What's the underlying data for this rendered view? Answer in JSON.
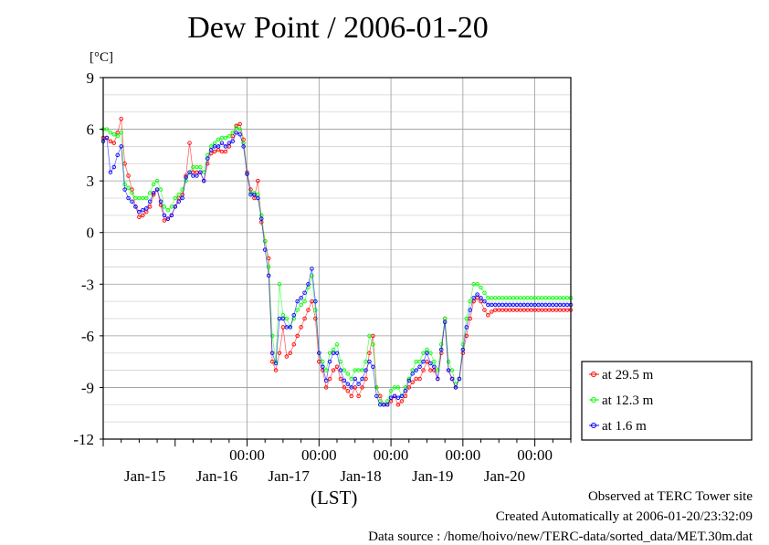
{
  "title": "Dew Point / 2006-01-20",
  "unit_label": "[°C]",
  "xlabel": "(LST)",
  "footer": {
    "site": "Observed at TERC Tower site",
    "created": "Created Automatically at 2006-01-20/23:32:09",
    "source": "Data source : /home/hoivo/new/TERC-data/sorted_data/MET.30m.dat"
  },
  "colors": {
    "at_29_5": "#ff0000",
    "at_12_3": "#00ff00",
    "at_1_6": "#0000ff"
  },
  "chart_data": {
    "type": "line",
    "title": "Dew Point / 2006-01-20",
    "ylabel": "[°C]",
    "xlabel": "(LST)",
    "ylim": [
      -12,
      9
    ],
    "yticks": [
      9,
      6,
      3,
      0,
      -3,
      -6,
      -9,
      -12
    ],
    "ytick_labels": [
      "9",
      "6",
      "3",
      "0",
      "-3",
      "-6",
      "-9",
      "-12"
    ],
    "xlim": [
      14.0,
      20.5
    ],
    "x_unit": "days (January 2006, local standard time)",
    "xticks_midnight": [
      16,
      17,
      18,
      19,
      20
    ],
    "xtick_labels_time": [
      "00:00",
      "00:00",
      "00:00",
      "00:00",
      "00:00"
    ],
    "xtick_labels_date": [
      {
        "x": 14.58,
        "label": "Jan-15"
      },
      {
        "x": 15.58,
        "label": "Jan-16"
      },
      {
        "x": 16.58,
        "label": "Jan-17"
      },
      {
        "x": 17.58,
        "label": "Jan-18"
      },
      {
        "x": 18.58,
        "label": "Jan-19"
      },
      {
        "x": 19.58,
        "label": "Jan-20"
      }
    ],
    "grid": true,
    "legend_position": "right",
    "series": [
      {
        "name": "at 29.5 m",
        "color": "#ff0000",
        "x": [
          14.0,
          14.05,
          14.1,
          14.15,
          14.2,
          14.25,
          14.3,
          14.35,
          14.4,
          14.45,
          14.5,
          14.55,
          14.6,
          14.65,
          14.7,
          14.75,
          14.8,
          14.85,
          14.9,
          14.95,
          15.0,
          15.05,
          15.1,
          15.15,
          15.2,
          15.25,
          15.3,
          15.35,
          15.4,
          15.45,
          15.5,
          15.55,
          15.6,
          15.65,
          15.7,
          15.75,
          15.8,
          15.85,
          15.9,
          15.95,
          16.0,
          16.05,
          16.1,
          16.15,
          16.2,
          16.25,
          16.3,
          16.35,
          16.4,
          16.45,
          16.5,
          16.55,
          16.6,
          16.65,
          16.7,
          16.75,
          16.8,
          16.85,
          16.9,
          16.95,
          17.0,
          17.05,
          17.1,
          17.15,
          17.2,
          17.25,
          17.3,
          17.35,
          17.4,
          17.45,
          17.5,
          17.55,
          17.6,
          17.65,
          17.7,
          17.75,
          17.8,
          17.85,
          17.9,
          17.95,
          18.0,
          18.05,
          18.1,
          18.15,
          18.2,
          18.25,
          18.3,
          18.35,
          18.4,
          18.45,
          18.5,
          18.55,
          18.6,
          18.65,
          18.7,
          18.75,
          18.8,
          18.85,
          18.9,
          18.95,
          19.0,
          19.05,
          19.1,
          19.15,
          19.2,
          19.25,
          19.3,
          19.35,
          19.4,
          19.45,
          19.5,
          19.55,
          19.6,
          19.65,
          19.7,
          19.75,
          19.8,
          19.85,
          19.9,
          19.95,
          20.0,
          20.05,
          20.1,
          20.15,
          20.2,
          20.25,
          20.3,
          20.35,
          20.4,
          20.45,
          20.5
        ],
        "y": [
          5.5,
          5.5,
          5.3,
          5.2,
          5.8,
          6.6,
          4.0,
          3.3,
          2.5,
          1.5,
          0.9,
          1.0,
          1.2,
          1.5,
          2.2,
          2.5,
          1.6,
          0.7,
          0.8,
          1.0,
          1.5,
          2.0,
          2.2,
          3.3,
          5.2,
          3.5,
          3.5,
          3.5,
          3.0,
          4.0,
          4.6,
          4.7,
          4.8,
          4.7,
          4.7,
          5.0,
          5.6,
          6.2,
          6.3,
          5.4,
          3.5,
          2.5,
          2.0,
          3.0,
          0.6,
          -0.5,
          -1.5,
          -7.5,
          -8.0,
          -7.0,
          -5.5,
          -7.2,
          -7.0,
          -6.5,
          -6.0,
          -5.5,
          -5.0,
          -4.5,
          -4.0,
          -5.0,
          -7.5,
          -8.0,
          -9.0,
          -8.5,
          -8.0,
          -7.8,
          -8.5,
          -9.0,
          -9.2,
          -9.5,
          -9.0,
          -9.5,
          -9.0,
          -8.5,
          -7.0,
          -6.0,
          -9.0,
          -9.5,
          -10.0,
          -10.0,
          -9.8,
          -9.5,
          -10.0,
          -9.8,
          -9.5,
          -9.0,
          -8.7,
          -8.5,
          -8.5,
          -8.0,
          -7.5,
          -8.0,
          -8.0,
          -8.5,
          -7.0,
          -5.0,
          -8.0,
          -8.5,
          -9.0,
          -8.5,
          -7.0,
          -6.0,
          -5.0,
          -4.0,
          -3.8,
          -4.0,
          -4.5,
          -4.8,
          -4.6,
          -4.5,
          -4.5,
          -4.5,
          -4.5,
          -4.5,
          -4.5,
          -4.5,
          -4.5,
          -4.5,
          -4.5,
          -4.5,
          -4.5,
          -4.5,
          -4.5,
          -4.5,
          -4.5,
          -4.5,
          -4.5,
          -4.5,
          -4.5,
          -4.5,
          -4.5
        ]
      },
      {
        "name": "at 12.3 m",
        "color": "#00ff00",
        "x": [
          14.0,
          14.05,
          14.1,
          14.15,
          14.2,
          14.25,
          14.3,
          14.35,
          14.4,
          14.45,
          14.5,
          14.55,
          14.6,
          14.65,
          14.7,
          14.75,
          14.8,
          14.85,
          14.9,
          14.95,
          15.0,
          15.05,
          15.1,
          15.15,
          15.2,
          15.25,
          15.3,
          15.35,
          15.4,
          15.45,
          15.5,
          15.55,
          15.6,
          15.65,
          15.7,
          15.75,
          15.8,
          15.85,
          15.9,
          15.95,
          16.0,
          16.05,
          16.1,
          16.15,
          16.2,
          16.25,
          16.3,
          16.35,
          16.4,
          16.45,
          16.5,
          16.55,
          16.6,
          16.65,
          16.7,
          16.75,
          16.8,
          16.85,
          16.9,
          16.95,
          17.0,
          17.05,
          17.1,
          17.15,
          17.2,
          17.25,
          17.3,
          17.35,
          17.4,
          17.45,
          17.5,
          17.55,
          17.6,
          17.65,
          17.7,
          17.75,
          17.8,
          17.85,
          17.9,
          17.95,
          18.0,
          18.05,
          18.1,
          18.15,
          18.2,
          18.25,
          18.3,
          18.35,
          18.4,
          18.45,
          18.5,
          18.55,
          18.6,
          18.65,
          18.7,
          18.75,
          18.8,
          18.85,
          18.9,
          18.95,
          19.0,
          19.05,
          19.1,
          19.15,
          19.2,
          19.25,
          19.3,
          19.35,
          19.4,
          19.45,
          19.5,
          19.55,
          19.6,
          19.65,
          19.7,
          19.75,
          19.8,
          19.85,
          19.9,
          19.95,
          20.0,
          20.05,
          20.1,
          20.15,
          20.2,
          20.25,
          20.3,
          20.35,
          20.4,
          20.45,
          20.5
        ],
        "y": [
          6.0,
          6.0,
          5.8,
          5.7,
          5.6,
          5.8,
          2.8,
          2.6,
          2.3,
          2.0,
          2.0,
          2.0,
          2.0,
          2.3,
          2.8,
          3.0,
          2.5,
          1.5,
          1.3,
          1.5,
          2.0,
          2.2,
          2.5,
          3.0,
          3.5,
          3.8,
          3.8,
          3.8,
          3.5,
          4.5,
          5.0,
          5.2,
          5.4,
          5.5,
          5.5,
          5.6,
          5.8,
          6.1,
          6.0,
          5.2,
          3.4,
          2.3,
          2.3,
          2.2,
          1.0,
          -0.5,
          -2.0,
          -6.0,
          -7.5,
          -3.0,
          -4.8,
          -5.0,
          -5.5,
          -5.0,
          -4.5,
          -4.2,
          -4.0,
          -3.2,
          -2.5,
          -4.5,
          -7.0,
          -7.5,
          -8.0,
          -7.0,
          -6.8,
          -6.5,
          -7.5,
          -8.0,
          -8.2,
          -8.5,
          -8.0,
          -8.0,
          -8.0,
          -7.5,
          -6.0,
          -6.5,
          -9.0,
          -9.8,
          -10.0,
          -9.8,
          -9.2,
          -9.0,
          -9.0,
          -9.5,
          -9.0,
          -8.5,
          -8.0,
          -7.5,
          -7.5,
          -7.0,
          -6.8,
          -7.0,
          -7.5,
          -8.0,
          -6.5,
          -5.0,
          -7.5,
          -8.0,
          -8.8,
          -8.5,
          -6.5,
          -5.0,
          -4.0,
          -3.0,
          -3.0,
          -3.2,
          -3.5,
          -3.8,
          -3.8,
          -3.8,
          -3.8,
          -3.8,
          -3.8,
          -3.8,
          -3.8,
          -3.8,
          -3.8,
          -3.8,
          -3.8,
          -3.8,
          -3.8,
          -3.8,
          -3.8,
          -3.8,
          -3.8,
          -3.8,
          -3.8,
          -3.8,
          -3.8,
          -3.8,
          -3.8
        ]
      },
      {
        "name": "at 1.6 m",
        "color": "#0000ff",
        "x": [
          14.0,
          14.05,
          14.1,
          14.15,
          14.2,
          14.25,
          14.3,
          14.35,
          14.4,
          14.45,
          14.5,
          14.55,
          14.6,
          14.65,
          14.7,
          14.75,
          14.8,
          14.85,
          14.9,
          14.95,
          15.0,
          15.05,
          15.1,
          15.15,
          15.2,
          15.25,
          15.3,
          15.35,
          15.4,
          15.45,
          15.5,
          15.55,
          15.6,
          15.65,
          15.7,
          15.75,
          15.8,
          15.85,
          15.9,
          15.95,
          16.0,
          16.05,
          16.1,
          16.15,
          16.2,
          16.25,
          16.3,
          16.35,
          16.4,
          16.45,
          16.5,
          16.55,
          16.6,
          16.65,
          16.7,
          16.75,
          16.8,
          16.85,
          16.9,
          16.95,
          17.0,
          17.05,
          17.1,
          17.15,
          17.2,
          17.25,
          17.3,
          17.35,
          17.4,
          17.45,
          17.5,
          17.55,
          17.6,
          17.65,
          17.7,
          17.75,
          17.8,
          17.85,
          17.9,
          17.95,
          18.0,
          18.05,
          18.1,
          18.15,
          18.2,
          18.25,
          18.3,
          18.35,
          18.4,
          18.45,
          18.5,
          18.55,
          18.6,
          18.65,
          18.7,
          18.75,
          18.8,
          18.85,
          18.9,
          18.95,
          19.0,
          19.05,
          19.1,
          19.15,
          19.2,
          19.25,
          19.3,
          19.35,
          19.4,
          19.45,
          19.5,
          19.55,
          19.6,
          19.65,
          19.7,
          19.75,
          19.8,
          19.85,
          19.9,
          19.95,
          20.0,
          20.05,
          20.1,
          20.15,
          20.2,
          20.25,
          20.3,
          20.35,
          20.4,
          20.45,
          20.5
        ],
        "y": [
          5.3,
          5.5,
          3.5,
          3.8,
          4.5,
          5.0,
          2.5,
          2.0,
          1.8,
          1.5,
          1.2,
          1.3,
          1.4,
          1.8,
          2.3,
          2.5,
          1.8,
          1.0,
          0.8,
          1.0,
          1.5,
          1.8,
          2.0,
          3.2,
          3.5,
          3.3,
          3.3,
          3.5,
          3.0,
          4.3,
          4.8,
          5.0,
          5.0,
          5.2,
          5.0,
          5.2,
          5.3,
          5.8,
          5.7,
          5.0,
          3.4,
          2.2,
          2.2,
          2.0,
          0.8,
          -1.0,
          -2.5,
          -7.0,
          -7.6,
          -5.0,
          -5.0,
          -5.5,
          -5.5,
          -4.8,
          -4.0,
          -3.8,
          -3.5,
          -3.0,
          -2.1,
          -4.0,
          -7.0,
          -7.8,
          -8.6,
          -7.5,
          -7.0,
          -7.0,
          -8.0,
          -8.6,
          -8.8,
          -9.0,
          -8.5,
          -8.8,
          -8.5,
          -8.0,
          -7.5,
          -7.8,
          -9.5,
          -10.0,
          -10.0,
          -10.0,
          -9.6,
          -9.5,
          -9.6,
          -9.5,
          -9.2,
          -8.6,
          -8.2,
          -8.0,
          -7.8,
          -7.5,
          -7.0,
          -7.6,
          -7.8,
          -8.5,
          -6.8,
          -5.2,
          -8.0,
          -8.5,
          -9.0,
          -8.5,
          -6.8,
          -5.5,
          -4.5,
          -3.8,
          -3.6,
          -3.8,
          -4.0,
          -4.2,
          -4.2,
          -4.2,
          -4.2,
          -4.2,
          -4.2,
          -4.2,
          -4.2,
          -4.2,
          -4.2,
          -4.2,
          -4.2,
          -4.2,
          -4.2,
          -4.2,
          -4.2,
          -4.2,
          -4.2,
          -4.2,
          -4.2,
          -4.2,
          -4.2,
          -4.2,
          -4.2
        ]
      }
    ]
  }
}
